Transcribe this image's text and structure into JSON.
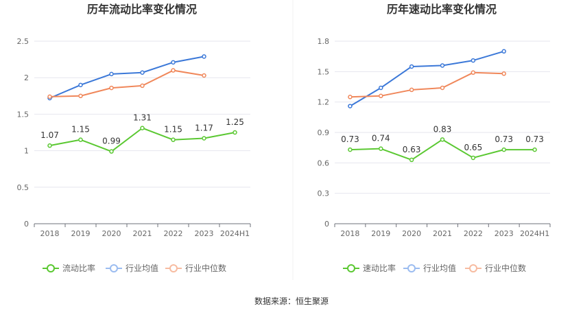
{
  "chart_data": [
    {
      "type": "line",
      "title": "历年流动比率变化情况",
      "categories": [
        "2018",
        "2019",
        "2020",
        "2021",
        "2022",
        "2023",
        "2024H1"
      ],
      "ylim": [
        0,
        2.5
      ],
      "yticks": [
        "0",
        "0.5",
        "1",
        "1.5",
        "2",
        "2.5"
      ],
      "series": [
        {
          "name": "流动比率",
          "values": [
            1.07,
            1.15,
            0.99,
            1.31,
            1.15,
            1.17,
            1.25
          ],
          "labels": [
            "1.07",
            "1.15",
            "0.99",
            "1.31",
            "1.15",
            "1.17",
            "1.25"
          ],
          "color": "#5ac831"
        },
        {
          "name": "行业均值",
          "values": [
            1.72,
            1.9,
            2.05,
            2.07,
            2.21,
            2.29,
            null
          ],
          "color": "#3b78d8"
        },
        {
          "name": "行业中位数",
          "values": [
            1.74,
            1.75,
            1.86,
            1.89,
            2.1,
            2.03,
            null
          ],
          "color": "#f0875a"
        }
      ]
    },
    {
      "type": "line",
      "title": "历年速动比率变化情况",
      "categories": [
        "2018",
        "2019",
        "2020",
        "2021",
        "2022",
        "2023",
        "2024H1"
      ],
      "ylim": [
        0,
        1.8
      ],
      "yticks": [
        "0",
        "0.3",
        "0.6",
        "0.9",
        "1.2",
        "1.5",
        "1.8"
      ],
      "series": [
        {
          "name": "速动比率",
          "values": [
            0.73,
            0.74,
            0.63,
            0.83,
            0.65,
            0.73,
            0.73
          ],
          "labels": [
            "0.73",
            "0.74",
            "0.63",
            "0.83",
            "0.65",
            "0.73",
            "0.73"
          ],
          "color": "#5ac831"
        },
        {
          "name": "行业均值",
          "values": [
            1.16,
            1.34,
            1.55,
            1.56,
            1.61,
            1.7,
            null
          ],
          "color": "#3b78d8"
        },
        {
          "name": "行业中位数",
          "values": [
            1.25,
            1.26,
            1.32,
            1.34,
            1.49,
            1.48,
            null
          ],
          "color": "#f0875a"
        }
      ]
    }
  ],
  "legend_light_colors": [
    "#5ac831",
    "#9bbcf0",
    "#f7bba0"
  ],
  "footer": {
    "source": "数据来源：恒生聚源"
  }
}
